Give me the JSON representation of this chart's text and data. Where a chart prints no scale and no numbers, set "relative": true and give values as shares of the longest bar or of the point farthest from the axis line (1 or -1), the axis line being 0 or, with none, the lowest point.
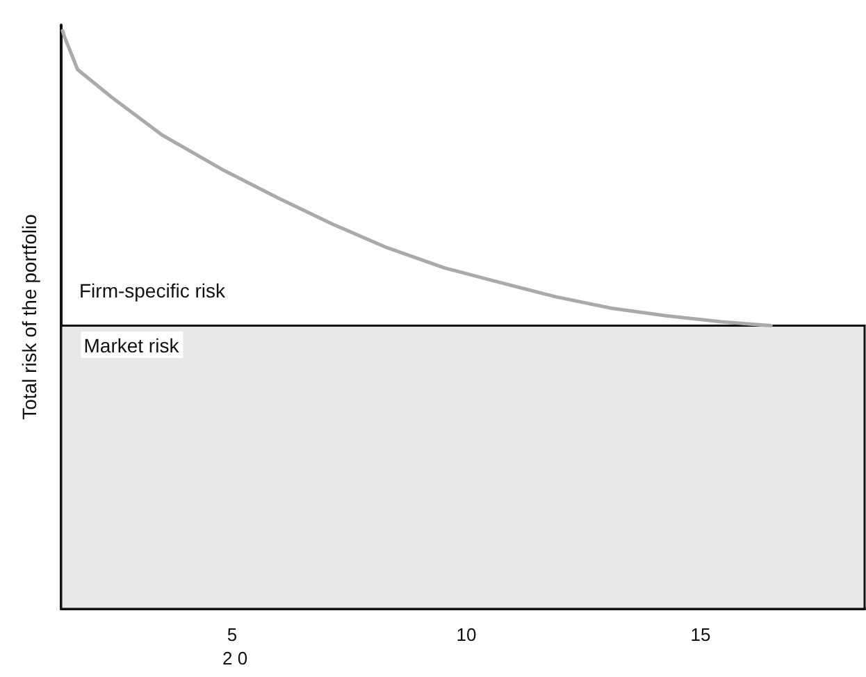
{
  "chart_data": {
    "type": "line",
    "ylabel": "Total risk of the portfolio",
    "relative": true,
    "xlim": [
      1.35,
      18.5
    ],
    "xticks": [
      5,
      10,
      15
    ],
    "grid": false,
    "marker": "none",
    "line_style": "solid",
    "series": [
      {
        "color": "#aaaaaa",
        "x": [
          1.38,
          1.42,
          1.7,
          2.43,
          3.5,
          4.79,
          6,
          7.16,
          8.3,
          9.53,
          10.7,
          11.9,
          13.1,
          14.26,
          15.4,
          16.5
        ],
        "values": [
          1,
          0.99,
          0.933,
          0.885,
          0.82,
          0.76,
          0.71,
          0.665,
          0.625,
          0.59,
          0.565,
          0.54,
          0.52,
          0.507,
          0.497,
          0.49
        ]
      }
    ],
    "bands": [
      {
        "axis": "y",
        "from": 0,
        "to": 0.49,
        "label": "Market risk",
        "color": "#e8e8e8"
      }
    ],
    "annotations": [
      "Firm-specific risk",
      "2 0"
    ]
  }
}
